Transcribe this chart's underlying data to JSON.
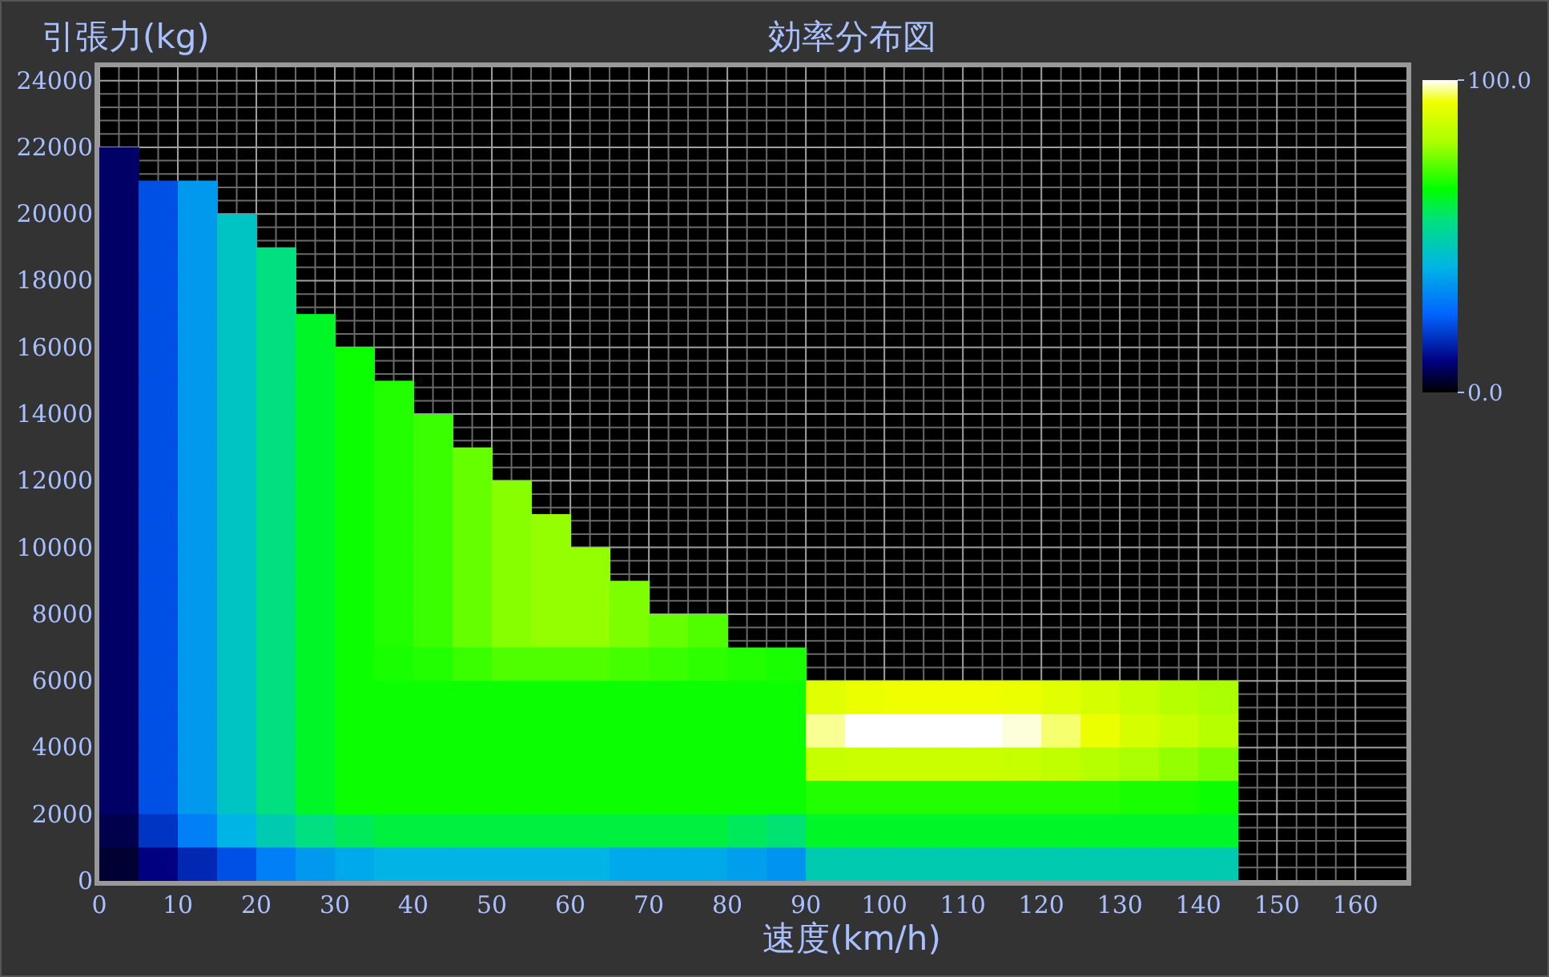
{
  "chart_data": {
    "type": "heatmap",
    "title": "効率分布図",
    "xlabel": "速度(km/h)",
    "ylabel": "引張力(kg)",
    "xlim": [
      0,
      166.5
    ],
    "ylim": [
      0,
      24400
    ],
    "xticks": [
      0,
      10,
      20,
      30,
      40,
      50,
      60,
      70,
      80,
      90,
      100,
      110,
      120,
      130,
      140,
      150,
      160
    ],
    "yticks": [
      0,
      2000,
      4000,
      6000,
      8000,
      10000,
      12000,
      14000,
      16000,
      18000,
      20000,
      22000,
      24000
    ],
    "clim": [
      0,
      100
    ],
    "cticks": [
      {
        "value": 0,
        "label": "0.0"
      },
      {
        "value": 100,
        "label": "100.0"
      }
    ],
    "grid": true,
    "x": [
      2.5,
      7.5,
      12.5,
      17.5,
      22.5,
      27.5,
      32.5,
      37.5,
      42.5,
      47.5,
      52.5,
      57.5,
      62.5,
      67.5,
      72.5,
      77.5,
      82.5,
      87.5,
      92.5,
      97.5,
      102.5,
      107.5,
      112.5,
      117.5,
      122.5,
      127.5,
      132.5,
      137.5,
      142.5
    ],
    "y": [
      21500,
      20500,
      19500,
      18500,
      17500,
      16500,
      15500,
      14500,
      13500,
      12500,
      11500,
      10500,
      9500,
      8500,
      7500,
      6500,
      5500,
      4500,
      3500,
      2500,
      1500,
      500
    ],
    "cells": [
      [
        8,
        null,
        null,
        null,
        null,
        null,
        null,
        null,
        null,
        null,
        null,
        null,
        null,
        null,
        null,
        null,
        null,
        null,
        null,
        null,
        null,
        null,
        null,
        null,
        null,
        null,
        null,
        null,
        null
      ],
      [
        8,
        22,
        35,
        null,
        null,
        null,
        null,
        null,
        null,
        null,
        null,
        null,
        null,
        null,
        null,
        null,
        null,
        null,
        null,
        null,
        null,
        null,
        null,
        null,
        null,
        null,
        null,
        null,
        null
      ],
      [
        8,
        22,
        35,
        45,
        null,
        null,
        null,
        null,
        null,
        null,
        null,
        null,
        null,
        null,
        null,
        null,
        null,
        null,
        null,
        null,
        null,
        null,
        null,
        null,
        null,
        null,
        null,
        null,
        null
      ],
      [
        8,
        22,
        35,
        45,
        55,
        null,
        null,
        null,
        null,
        null,
        null,
        null,
        null,
        null,
        null,
        null,
        null,
        null,
        null,
        null,
        null,
        null,
        null,
        null,
        null,
        null,
        null,
        null,
        null
      ],
      [
        8,
        22,
        35,
        45,
        55,
        null,
        null,
        null,
        null,
        null,
        null,
        null,
        null,
        null,
        null,
        null,
        null,
        null,
        null,
        null,
        null,
        null,
        null,
        null,
        null,
        null,
        null,
        null,
        null
      ],
      [
        8,
        22,
        35,
        45,
        55,
        62,
        null,
        null,
        null,
        null,
        null,
        null,
        null,
        null,
        null,
        null,
        null,
        null,
        null,
        null,
        null,
        null,
        null,
        null,
        null,
        null,
        null,
        null,
        null
      ],
      [
        8,
        22,
        35,
        45,
        55,
        62,
        66,
        null,
        null,
        null,
        null,
        null,
        null,
        null,
        null,
        null,
        null,
        null,
        null,
        null,
        null,
        null,
        null,
        null,
        null,
        null,
        null,
        null,
        null
      ],
      [
        8,
        22,
        35,
        45,
        55,
        62,
        66,
        68,
        null,
        null,
        null,
        null,
        null,
        null,
        null,
        null,
        null,
        null,
        null,
        null,
        null,
        null,
        null,
        null,
        null,
        null,
        null,
        null,
        null
      ],
      [
        8,
        22,
        35,
        45,
        55,
        62,
        66,
        68,
        70,
        null,
        null,
        null,
        null,
        null,
        null,
        null,
        null,
        null,
        null,
        null,
        null,
        null,
        null,
        null,
        null,
        null,
        null,
        null,
        null
      ],
      [
        8,
        22,
        35,
        45,
        55,
        62,
        66,
        68,
        70,
        74,
        null,
        null,
        null,
        null,
        null,
        null,
        null,
        null,
        null,
        null,
        null,
        null,
        null,
        null,
        null,
        null,
        null,
        null,
        null
      ],
      [
        8,
        22,
        35,
        45,
        55,
        62,
        66,
        68,
        70,
        74,
        77,
        null,
        null,
        null,
        null,
        null,
        null,
        null,
        null,
        null,
        null,
        null,
        null,
        null,
        null,
        null,
        null,
        null,
        null
      ],
      [
        8,
        22,
        35,
        45,
        55,
        62,
        66,
        68,
        70,
        74,
        77,
        78,
        null,
        null,
        null,
        null,
        null,
        null,
        null,
        null,
        null,
        null,
        null,
        null,
        null,
        null,
        null,
        null,
        null
      ],
      [
        8,
        22,
        35,
        45,
        55,
        62,
        66,
        68,
        70,
        74,
        77,
        78,
        78,
        null,
        null,
        null,
        null,
        null,
        null,
        null,
        null,
        null,
        null,
        null,
        null,
        null,
        null,
        null,
        null
      ],
      [
        8,
        22,
        35,
        45,
        55,
        62,
        66,
        68,
        70,
        74,
        77,
        78,
        78,
        76,
        null,
        null,
        null,
        null,
        null,
        null,
        null,
        null,
        null,
        null,
        null,
        null,
        null,
        null,
        null
      ],
      [
        8,
        22,
        35,
        45,
        55,
        62,
        66,
        68,
        70,
        74,
        77,
        78,
        78,
        76,
        74,
        72,
        null,
        null,
        null,
        null,
        null,
        null,
        null,
        null,
        null,
        null,
        null,
        null,
        null
      ],
      [
        8,
        22,
        35,
        45,
        55,
        62,
        66,
        67,
        68,
        70,
        72,
        72,
        72,
        71,
        70,
        69,
        68,
        67,
        null,
        null,
        null,
        null,
        null,
        null,
        null,
        null,
        null,
        null,
        null
      ],
      [
        8,
        22,
        35,
        45,
        55,
        62,
        66,
        66,
        66,
        66,
        66,
        66,
        66,
        66,
        66,
        66,
        66,
        66,
        90,
        92,
        93,
        93,
        93,
        92,
        90,
        88,
        85,
        82,
        80
      ],
      [
        8,
        22,
        35,
        45,
        55,
        62,
        66,
        66,
        66,
        66,
        66,
        66,
        66,
        66,
        66,
        66,
        66,
        66,
        97,
        100,
        100,
        100,
        100,
        99,
        96,
        92,
        88,
        85,
        82
      ],
      [
        8,
        22,
        35,
        45,
        55,
        62,
        66,
        66,
        66,
        66,
        66,
        66,
        66,
        66,
        66,
        66,
        66,
        66,
        85,
        86,
        86,
        86,
        86,
        85,
        84,
        82,
        80,
        78,
        76
      ],
      [
        8,
        22,
        35,
        45,
        55,
        62,
        66,
        66,
        66,
        66,
        66,
        66,
        66,
        66,
        66,
        66,
        66,
        66,
        68,
        68,
        68,
        68,
        68,
        68,
        68,
        68,
        67,
        67,
        66
      ],
      [
        6,
        18,
        30,
        40,
        48,
        55,
        58,
        60,
        60,
        60,
        60,
        60,
        60,
        60,
        60,
        60,
        58,
        56,
        62,
        62,
        62,
        62,
        62,
        62,
        62,
        62,
        62,
        62,
        62
      ],
      [
        4,
        10,
        16,
        22,
        30,
        35,
        38,
        40,
        40,
        40,
        40,
        40,
        40,
        38,
        38,
        38,
        36,
        34,
        48,
        48,
        48,
        48,
        48,
        48,
        48,
        48,
        48,
        48,
        48
      ]
    ]
  }
}
